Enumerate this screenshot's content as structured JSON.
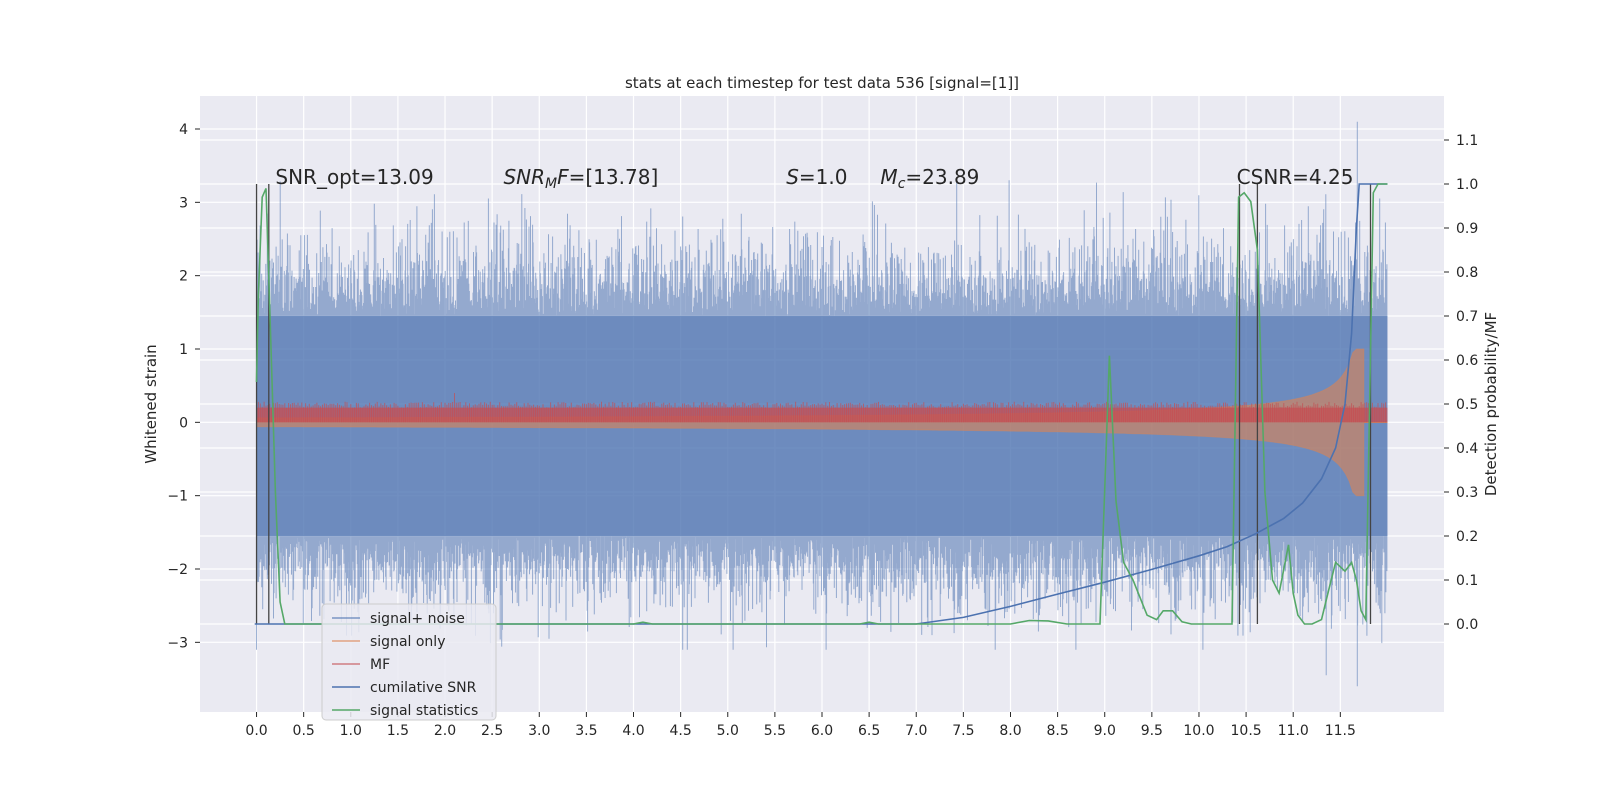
{
  "chart_data": {
    "type": "line",
    "title": "stats at each timestep for test data 536 [signal=[1]]",
    "ylabel_left": "Whitened strain",
    "ylabel_right": "Detection probability/MF",
    "xlim": [
      -0.6,
      12.6
    ],
    "ylim_left": [
      -3.95,
      4.45
    ],
    "ylim_right": [
      -0.2,
      1.2
    ],
    "x_ticks": [
      0.0,
      0.5,
      1.0,
      1.5,
      2.0,
      2.5,
      3.0,
      3.5,
      4.0,
      4.5,
      5.0,
      5.5,
      6.0,
      6.5,
      7.0,
      7.5,
      8.0,
      8.5,
      9.0,
      9.5,
      10.0,
      10.5,
      11.0,
      11.5
    ],
    "x_tick_labels": [
      "0.0",
      "0.5",
      "1.0",
      "1.5",
      "2.0",
      "2.5",
      "3.0",
      "3.5",
      "4.0",
      "4.5",
      "5.0",
      "5.5",
      "6.0",
      "6.5",
      "7.0",
      "7.5",
      "8.0",
      "8.5",
      "9.0",
      "9.5",
      "10.0",
      "10.5",
      "11.0",
      "11.5"
    ],
    "y_left_ticks": [
      -3,
      -2,
      -1,
      0,
      1,
      2,
      3,
      4
    ],
    "y_left_tick_labels": [
      "−3",
      "−2",
      "−1",
      "0",
      "1",
      "2",
      "3",
      "4"
    ],
    "y_right_ticks": [
      0.0,
      0.1,
      0.2,
      0.3,
      0.4,
      0.5,
      0.6,
      0.7,
      0.8,
      0.9,
      1.0,
      1.1
    ],
    "y_right_tick_labels": [
      "0.0",
      "0.1",
      "0.2",
      "0.3",
      "0.4",
      "0.5",
      "0.6",
      "0.7",
      "0.8",
      "0.9",
      "1.0",
      "1.1"
    ],
    "grid": true,
    "legend_position": "lower-left",
    "annotations": [
      {
        "text": "SNR_opt=13.09",
        "x": 0.2
      },
      {
        "text": "SNR",
        "sub": "M",
        "tail": "F=[13.78]",
        "italic": true,
        "x": 2.62
      },
      {
        "text": "S",
        "tail": "=1.0",
        "italic": true,
        "x": 5.62
      },
      {
        "text": "M",
        "sub": "c",
        "tail": "=23.89",
        "italic": true,
        "x": 6.62
      },
      {
        "text": "CSNR=4.25",
        "x": 10.4
      }
    ],
    "series": [
      {
        "name": "signal+ noise",
        "color": "#4c72b0",
        "style": "noise band",
        "x_range": [
          0.0,
          12.0
        ],
        "band_core": [
          -1.55,
          1.45
        ],
        "extremes": [
          -3.6,
          4.1
        ]
      },
      {
        "name": "signal only",
        "color": "#dd8452",
        "style": "chirp",
        "x_range": [
          0.0,
          12.0
        ],
        "peak_amplitude": 1.0,
        "peak_x": 11.75
      },
      {
        "name": "MF",
        "color": "#c44e52",
        "style": "thin band",
        "x_range": [
          0.0,
          12.0
        ],
        "band": [
          0.0,
          0.2
        ]
      },
      {
        "name": "cumilative SNR",
        "color": "#4c72b0",
        "axis": "right",
        "x": [
          -0.02,
          0.0,
          7.0,
          7.5,
          8.0,
          8.5,
          9.0,
          9.5,
          10.0,
          10.3,
          10.6,
          10.9,
          11.1,
          11.3,
          11.45,
          11.55,
          11.62,
          11.67,
          11.7,
          12.0
        ],
        "y": [
          0.0,
          0.0,
          0.0,
          0.015,
          0.04,
          0.068,
          0.095,
          0.124,
          0.155,
          0.176,
          0.205,
          0.24,
          0.275,
          0.33,
          0.4,
          0.5,
          0.66,
          0.9,
          1.0,
          1.0
        ]
      },
      {
        "name": "signal statistics",
        "color": "#55a868",
        "axis": "right",
        "x": [
          0.0,
          0.02,
          0.06,
          0.1,
          0.15,
          0.2,
          0.25,
          0.3,
          0.38,
          4.0,
          4.1,
          4.2,
          6.4,
          6.5,
          6.6,
          8.0,
          8.2,
          8.4,
          8.6,
          8.95,
          9.05,
          9.12,
          9.2,
          9.3,
          9.45,
          9.55,
          9.62,
          9.72,
          9.82,
          9.92,
          10.1,
          10.35,
          10.42,
          10.48,
          10.55,
          10.62,
          10.7,
          10.78,
          10.85,
          10.95,
          11.0,
          11.05,
          11.12,
          11.2,
          11.3,
          11.38,
          11.45,
          11.55,
          11.62,
          11.67,
          11.72,
          11.77,
          11.85,
          11.9,
          12.0
        ],
        "y": [
          0.55,
          0.75,
          0.97,
          0.99,
          0.65,
          0.3,
          0.05,
          0.0,
          0.0,
          0.0,
          0.004,
          0.0,
          0.0,
          0.004,
          0.0,
          0.0,
          0.008,
          0.007,
          0.0,
          0.0,
          0.61,
          0.28,
          0.14,
          0.1,
          0.02,
          0.01,
          0.03,
          0.03,
          0.005,
          0.0,
          0.0,
          0.0,
          0.97,
          0.98,
          0.96,
          0.85,
          0.3,
          0.1,
          0.07,
          0.18,
          0.07,
          0.02,
          0.0,
          0.0,
          0.01,
          0.08,
          0.14,
          0.12,
          0.14,
          0.1,
          0.03,
          0.01,
          0.98,
          1.0,
          1.0
        ]
      }
    ],
    "vertical_markers_x": [
      0.0,
      0.13,
      10.43,
      10.62,
      11.82
    ]
  }
}
